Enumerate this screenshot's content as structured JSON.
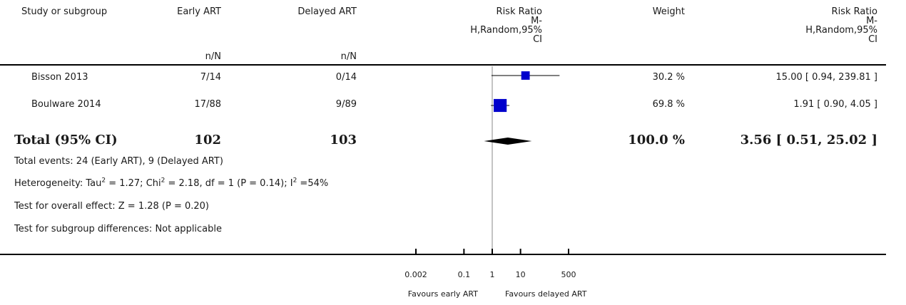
{
  "headers": {
    "study": "Study or subgroup",
    "group1": "Early ART",
    "group2": "Delayed ART",
    "group1_sub": "n/N",
    "group2_sub": "n/N",
    "plot_title": [
      "Risk Ratio",
      "M-",
      "H,Random,95%",
      "CI"
    ],
    "weight": "Weight",
    "effect_title": [
      "Risk Ratio",
      "M-",
      "H,Random,95%",
      "CI"
    ]
  },
  "studies": [
    {
      "name": "Bisson 2013",
      "g1": "7/14",
      "g2": "0/14",
      "weight": "30.2 %",
      "effect": "15.00 [ 0.94, 239.81 ]"
    },
    {
      "name": "Boulware 2014",
      "g1": "17/88",
      "g2": "9/89",
      "weight": "69.8 %",
      "effect": "1.91 [ 0.90, 4.05 ]"
    }
  ],
  "total": {
    "label": "Total (95% CI)",
    "g1": "102",
    "g2": "103",
    "weight": "100.0 %",
    "effect": "3.56 [ 0.51, 25.02 ]"
  },
  "footnotes": {
    "events": "Total events: 24 (Early ART), 9 (Delayed ART)",
    "heterogeneity_a": "Heterogeneity: Tau",
    "heterogeneity_b": " = 1.27; Chi",
    "heterogeneity_c": " = 2.18, df = 1 (P = 0.14); I",
    "heterogeneity_d": " =54%",
    "sup2": "2",
    "overall": "Test for overall effect: Z = 1.28 (P = 0.20)",
    "subgroup": "Test for subgroup differences: Not applicable"
  },
  "axis": {
    "left_label": "Favours early ART",
    "right_label": "Favours delayed ART"
  },
  "chart_data": {
    "type": "forest",
    "scale": "log",
    "xlim": [
      0.002,
      500
    ],
    "ticks": [
      0.002,
      0.1,
      1,
      10,
      500
    ],
    "tick_labels": [
      "0.002",
      "0.1",
      "1",
      "10",
      "500"
    ],
    "null_value": 1,
    "studies": [
      {
        "name": "Bisson 2013",
        "estimate": 15.0,
        "lower": 0.94,
        "upper": 239.81,
        "weight": 30.2
      },
      {
        "name": "Boulware 2014",
        "estimate": 1.91,
        "lower": 0.9,
        "upper": 4.05,
        "weight": 69.8
      }
    ],
    "pooled": {
      "estimate": 3.56,
      "lower": 0.51,
      "upper": 25.02
    },
    "marker_color": "#0000cc",
    "line_color": "#000000"
  }
}
